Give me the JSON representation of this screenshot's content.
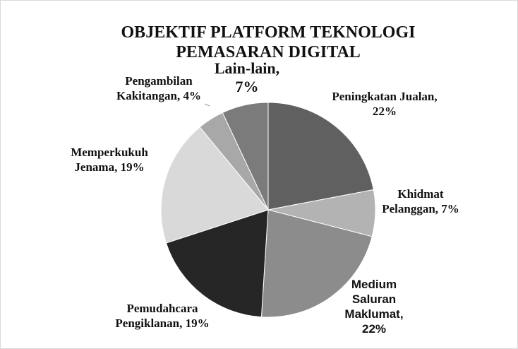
{
  "chart_data": {
    "type": "pie",
    "title": "OBJEKTIF PLATFORM TEKNOLOGI PEMASARAN DIGITAL",
    "values": [
      22,
      7,
      22,
      19,
      19,
      4,
      7
    ],
    "value_labels": [
      "Peningkatan Jualan, 22%",
      "Khidmat Pelanggan, 7%",
      "Medium Saluran Maklumat, 22%",
      "Pemudahcara Pengiklanan, 19%",
      "Memperkukuh Jenama, 19%",
      "Pengambilan Kakitangan, 4%",
      "Lain-lain, 7%"
    ],
    "colors": [
      "#606060",
      "#b3b3b3",
      "#8c8c8c",
      "#262626",
      "#d9d9d9",
      "#a8a8a8",
      "#7b7b7b"
    ]
  }
}
